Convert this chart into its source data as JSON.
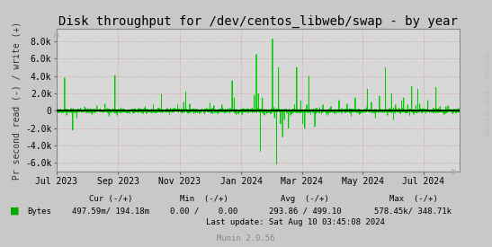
{
  "title": "Disk throughput for /dev/centos_libweb/swap - by year",
  "ylabel": "Pr second read (-) / write (+)",
  "background_color": "#c8c8c8",
  "plot_bg_color": "#d8d8d8",
  "grid_color_h": "#cc8888",
  "grid_color_v": "#cc8888",
  "line_color": "#00cc00",
  "zero_line_color": "#000000",
  "ylim": [
    -7000,
    9500
  ],
  "yticks": [
    -6000,
    -4000,
    -2000,
    0,
    2000,
    4000,
    6000,
    8000
  ],
  "ytick_labels": [
    "-6.0k",
    "-4.0k",
    "-2.0k",
    "0",
    "2.0k",
    "4.0k",
    "6.0k",
    "8.0k"
  ],
  "xstart": 1688169600,
  "xend": 1723248000,
  "xtick_positions": [
    1688169600,
    1693526400,
    1698883200,
    1704240000,
    1709510400,
    1714780800,
    1720051200
  ],
  "xtick_labels": [
    "Jul 2023",
    "Sep 2023",
    "Nov 2023",
    "Jan 2024",
    "Mar 2024",
    "May 2024",
    "Jul 2024"
  ],
  "watermark": "RRDTOOL / TOBI OETIKER",
  "munin_text": "Munin 2.0.56",
  "legend_label": "Bytes",
  "legend_color": "#00aa00",
  "last_update": "Last update: Sat Aug 10 03:45:08 2024",
  "tick_fontsize": 7,
  "title_fontsize": 10,
  "ylabel_fontsize": 7
}
